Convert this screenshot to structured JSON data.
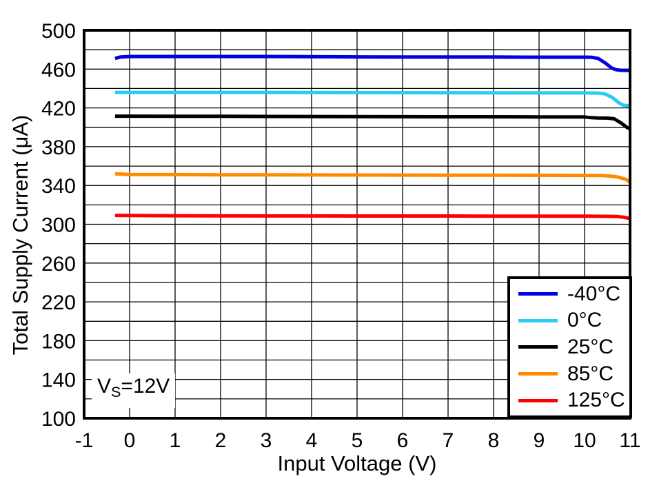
{
  "figure": {
    "background": "#ffffff",
    "annotation": {
      "prefix": "V",
      "sub": "S",
      "suffix": "=12V"
    }
  },
  "chart_data": {
    "type": "line",
    "title": "",
    "xlabel": "Input Voltage (V)",
    "ylabel": "Total Supply Current (μA)",
    "xlim": [
      -1,
      11
    ],
    "ylim": [
      100,
      500
    ],
    "x_ticks": [
      -1,
      0,
      1,
      2,
      3,
      4,
      5,
      6,
      7,
      8,
      9,
      10,
      11
    ],
    "y_ticks": [
      100,
      140,
      180,
      220,
      260,
      300,
      340,
      380,
      420,
      460,
      500
    ],
    "x_grid_step": 1,
    "y_grid_step": 20,
    "grid": true,
    "legend_position": "bottom-right",
    "annotation_text": "Vs=12V",
    "series": [
      {
        "name": "-40°C",
        "color": "#0000E0",
        "points": [
          [
            -0.32,
            471
          ],
          [
            -0.2,
            472.5
          ],
          [
            0,
            473
          ],
          [
            1,
            473
          ],
          [
            2,
            473
          ],
          [
            3,
            473
          ],
          [
            4,
            472.8
          ],
          [
            5,
            472.6
          ],
          [
            6,
            472.5
          ],
          [
            7,
            472.4
          ],
          [
            8,
            472.4
          ],
          [
            9,
            472.3
          ],
          [
            10,
            472.3
          ],
          [
            10.15,
            472.2
          ],
          [
            10.3,
            471
          ],
          [
            10.45,
            466.5
          ],
          [
            10.6,
            461
          ],
          [
            10.7,
            459.3
          ],
          [
            10.8,
            458.8
          ],
          [
            11,
            458.5
          ]
        ]
      },
      {
        "name": "0°C",
        "color": "#29CDF4",
        "points": [
          [
            -0.32,
            436
          ],
          [
            0,
            436
          ],
          [
            1,
            436
          ],
          [
            2,
            436
          ],
          [
            3,
            436
          ],
          [
            4,
            435.9
          ],
          [
            5,
            435.8
          ],
          [
            6,
            435.7
          ],
          [
            7,
            435.6
          ],
          [
            8,
            435.5
          ],
          [
            9,
            435.4
          ],
          [
            10,
            435.4
          ],
          [
            10.3,
            435.3
          ],
          [
            10.45,
            434.5
          ],
          [
            10.6,
            431
          ],
          [
            10.75,
            425.5
          ],
          [
            10.85,
            422.8
          ],
          [
            11,
            422
          ]
        ]
      },
      {
        "name": "25°C",
        "color": "#000000",
        "points": [
          [
            -0.32,
            411.5
          ],
          [
            0,
            411.5
          ],
          [
            1,
            411.4
          ],
          [
            2,
            411.3
          ],
          [
            3,
            411.2
          ],
          [
            4,
            411.1
          ],
          [
            5,
            411
          ],
          [
            6,
            410.9
          ],
          [
            7,
            410.8
          ],
          [
            8,
            410.8
          ],
          [
            9,
            410.7
          ],
          [
            10,
            410.6
          ],
          [
            10.15,
            409.9
          ],
          [
            10.3,
            409.6
          ],
          [
            10.5,
            409.5
          ],
          [
            10.65,
            408.8
          ],
          [
            10.8,
            404.5
          ],
          [
            10.95,
            399.3
          ],
          [
            11,
            398.5
          ]
        ]
      },
      {
        "name": "85°C",
        "color": "#FF8A00",
        "points": [
          [
            -0.32,
            352
          ],
          [
            -0.1,
            351.6
          ],
          [
            0,
            351.4
          ],
          [
            1,
            351.2
          ],
          [
            2,
            351
          ],
          [
            3,
            351
          ],
          [
            4,
            350.9
          ],
          [
            5,
            350.8
          ],
          [
            6,
            350.7
          ],
          [
            7,
            350.6
          ],
          [
            8,
            350.6
          ],
          [
            9,
            350.5
          ],
          [
            10,
            350.4
          ],
          [
            10.4,
            350.2
          ],
          [
            10.6,
            349.6
          ],
          [
            10.75,
            348.5
          ],
          [
            10.9,
            346.5
          ],
          [
            11,
            343.8
          ]
        ]
      },
      {
        "name": "125°C",
        "color": "#FF0000",
        "points": [
          [
            -0.32,
            309.2
          ],
          [
            0,
            309
          ],
          [
            1,
            308.8
          ],
          [
            2,
            308.7
          ],
          [
            3,
            308.6
          ],
          [
            4,
            308.6
          ],
          [
            5,
            308.5
          ],
          [
            6,
            308.5
          ],
          [
            7,
            308.5
          ],
          [
            8,
            308.4
          ],
          [
            9,
            308.4
          ],
          [
            10,
            308.3
          ],
          [
            10.5,
            308.2
          ],
          [
            10.7,
            308
          ],
          [
            10.85,
            307.3
          ],
          [
            11,
            306
          ]
        ]
      }
    ]
  }
}
